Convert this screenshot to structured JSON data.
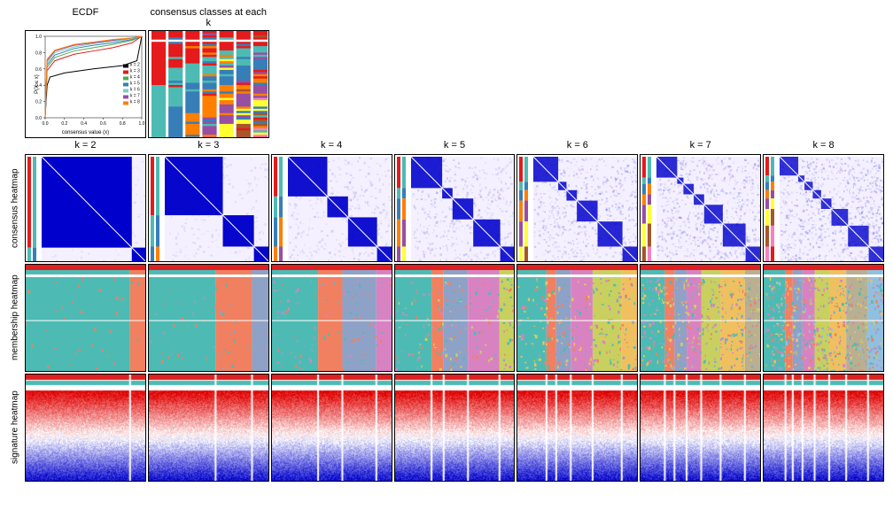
{
  "top_titles": {
    "ecdf": "ECDF",
    "consensus_classes": "consensus classes at each k"
  },
  "row_labels": {
    "consensus": "consensus heatmap",
    "membership": "membership heatmap",
    "signature": "signature heatmap"
  },
  "k_values": [
    "k = 2",
    "k = 3",
    "k = 4",
    "k = 5",
    "k = 6",
    "k = 7",
    "k = 8"
  ],
  "ecdf": {
    "ylabel": "P(X ≤ x)",
    "xlabel": "consensus value (x)",
    "xticks": [
      "0.0",
      "0.2",
      "0.4",
      "0.6",
      "0.8",
      "1.0"
    ],
    "yticks": [
      "0.0",
      "0.2",
      "0.4",
      "0.6",
      "0.8",
      "1.0"
    ],
    "legend": [
      {
        "label": "k = 2",
        "color": "#000000"
      },
      {
        "label": "k = 3",
        "color": "#e41a1c"
      },
      {
        "label": "k = 4",
        "color": "#4daf4a"
      },
      {
        "label": "k = 5",
        "color": "#377eb8"
      },
      {
        "label": "k = 6",
        "color": "#80cdc1"
      },
      {
        "label": "k = 7",
        "color": "#984ea3"
      },
      {
        "label": "k = 8",
        "color": "#ff7f00"
      }
    ],
    "curves": [
      {
        "color": "#000000",
        "pts": [
          [
            0,
            0.02
          ],
          [
            0.02,
            0.4
          ],
          [
            0.05,
            0.5
          ],
          [
            0.2,
            0.55
          ],
          [
            0.5,
            0.6
          ],
          [
            0.8,
            0.64
          ],
          [
            0.95,
            0.7
          ],
          [
            1,
            1
          ]
        ]
      },
      {
        "color": "#e41a1c",
        "pts": [
          [
            0,
            0.02
          ],
          [
            0.02,
            0.58
          ],
          [
            0.1,
            0.7
          ],
          [
            0.3,
            0.78
          ],
          [
            0.5,
            0.82
          ],
          [
            0.7,
            0.86
          ],
          [
            0.9,
            0.92
          ],
          [
            1,
            1
          ]
        ]
      },
      {
        "color": "#4daf4a",
        "pts": [
          [
            0,
            0.02
          ],
          [
            0.02,
            0.62
          ],
          [
            0.1,
            0.74
          ],
          [
            0.3,
            0.82
          ],
          [
            0.5,
            0.86
          ],
          [
            0.7,
            0.9
          ],
          [
            0.9,
            0.95
          ],
          [
            1,
            1
          ]
        ]
      },
      {
        "color": "#377eb8",
        "pts": [
          [
            0,
            0.02
          ],
          [
            0.02,
            0.65
          ],
          [
            0.1,
            0.77
          ],
          [
            0.3,
            0.85
          ],
          [
            0.5,
            0.89
          ],
          [
            0.7,
            0.92
          ],
          [
            0.9,
            0.96
          ],
          [
            1,
            1
          ]
        ]
      },
      {
        "color": "#80cdc1",
        "pts": [
          [
            0,
            0.02
          ],
          [
            0.02,
            0.68
          ],
          [
            0.1,
            0.8
          ],
          [
            0.3,
            0.87
          ],
          [
            0.5,
            0.91
          ],
          [
            0.7,
            0.94
          ],
          [
            0.9,
            0.97
          ],
          [
            1,
            1
          ]
        ]
      },
      {
        "color": "#984ea3",
        "pts": [
          [
            0,
            0.02
          ],
          [
            0.02,
            0.7
          ],
          [
            0.1,
            0.82
          ],
          [
            0.3,
            0.89
          ],
          [
            0.5,
            0.92
          ],
          [
            0.7,
            0.95
          ],
          [
            0.9,
            0.98
          ],
          [
            1,
            1
          ]
        ]
      },
      {
        "color": "#ff7f00",
        "pts": [
          [
            0,
            0.02
          ],
          [
            0.02,
            0.72
          ],
          [
            0.1,
            0.83
          ],
          [
            0.3,
            0.9
          ],
          [
            0.5,
            0.93
          ],
          [
            0.7,
            0.96
          ],
          [
            0.9,
            0.98
          ],
          [
            1,
            1
          ]
        ]
      }
    ]
  },
  "consensus_classes": {
    "panels": 7,
    "palette": [
      "#e41a1c",
      "#4dbbb3",
      "#377eb8",
      "#ff7f00",
      "#984ea3",
      "#ffff33",
      "#a65628",
      "#f781bf"
    ],
    "bg": "#ffffff"
  },
  "consensus_heatmap": {
    "color_lo": "#ffffff",
    "color_hi": "#0000cc",
    "side_palette": [
      "#e41a1c",
      "#4dbbb3",
      "#377eb8",
      "#ff7f00",
      "#984ea3",
      "#ffff33",
      "#a65628",
      "#f781bf"
    ],
    "block_props": [
      [
        0.87,
        0.13
      ],
      [
        0.56,
        0.3,
        0.14
      ],
      [
        0.38,
        0.2,
        0.28,
        0.14
      ],
      [
        0.3,
        0.1,
        0.2,
        0.26,
        0.14
      ],
      [
        0.24,
        0.08,
        0.1,
        0.2,
        0.24,
        0.14
      ],
      [
        0.2,
        0.06,
        0.1,
        0.1,
        0.18,
        0.22,
        0.14
      ],
      [
        0.18,
        0.06,
        0.08,
        0.08,
        0.1,
        0.16,
        0.2,
        0.14
      ]
    ],
    "contrast": [
      1.0,
      0.95,
      0.85,
      0.75,
      0.65,
      0.6,
      0.55
    ]
  },
  "membership_heatmap": {
    "palette": [
      "#4dbbb3",
      "#f08060",
      "#8ea2c8",
      "#d982c2",
      "#c8d060",
      "#f0c060",
      "#b8b090",
      "#90c0e0"
    ],
    "top_color": "#e02020",
    "boundaries": [
      [
        0.86
      ],
      [
        0.55,
        0.85
      ],
      [
        0.38,
        0.58,
        0.86
      ],
      [
        0.3,
        0.4,
        0.6,
        0.86
      ],
      [
        0.24,
        0.32,
        0.44,
        0.62,
        0.86
      ],
      [
        0.2,
        0.28,
        0.38,
        0.5,
        0.66,
        0.86
      ],
      [
        0.18,
        0.24,
        0.32,
        0.42,
        0.54,
        0.68,
        0.86
      ]
    ],
    "noise_level": [
      0.02,
      0.03,
      0.05,
      0.08,
      0.12,
      0.18,
      0.22
    ]
  },
  "signature_heatmap": {
    "color_hi": "#e00000",
    "color_mid": "#ffffff",
    "color_lo": "#0000cc",
    "top_red": "#e02020",
    "top_teal": "#4dbbb3",
    "white_lines": [
      [
        0.86
      ],
      [
        0.55,
        0.85
      ],
      [
        0.38,
        0.58,
        0.86
      ],
      [
        0.3,
        0.4,
        0.6,
        0.86
      ],
      [
        0.24,
        0.32,
        0.44,
        0.62,
        0.86
      ],
      [
        0.2,
        0.28,
        0.38,
        0.5,
        0.66,
        0.86
      ],
      [
        0.18,
        0.24,
        0.32,
        0.42,
        0.54,
        0.68,
        0.86
      ]
    ]
  }
}
